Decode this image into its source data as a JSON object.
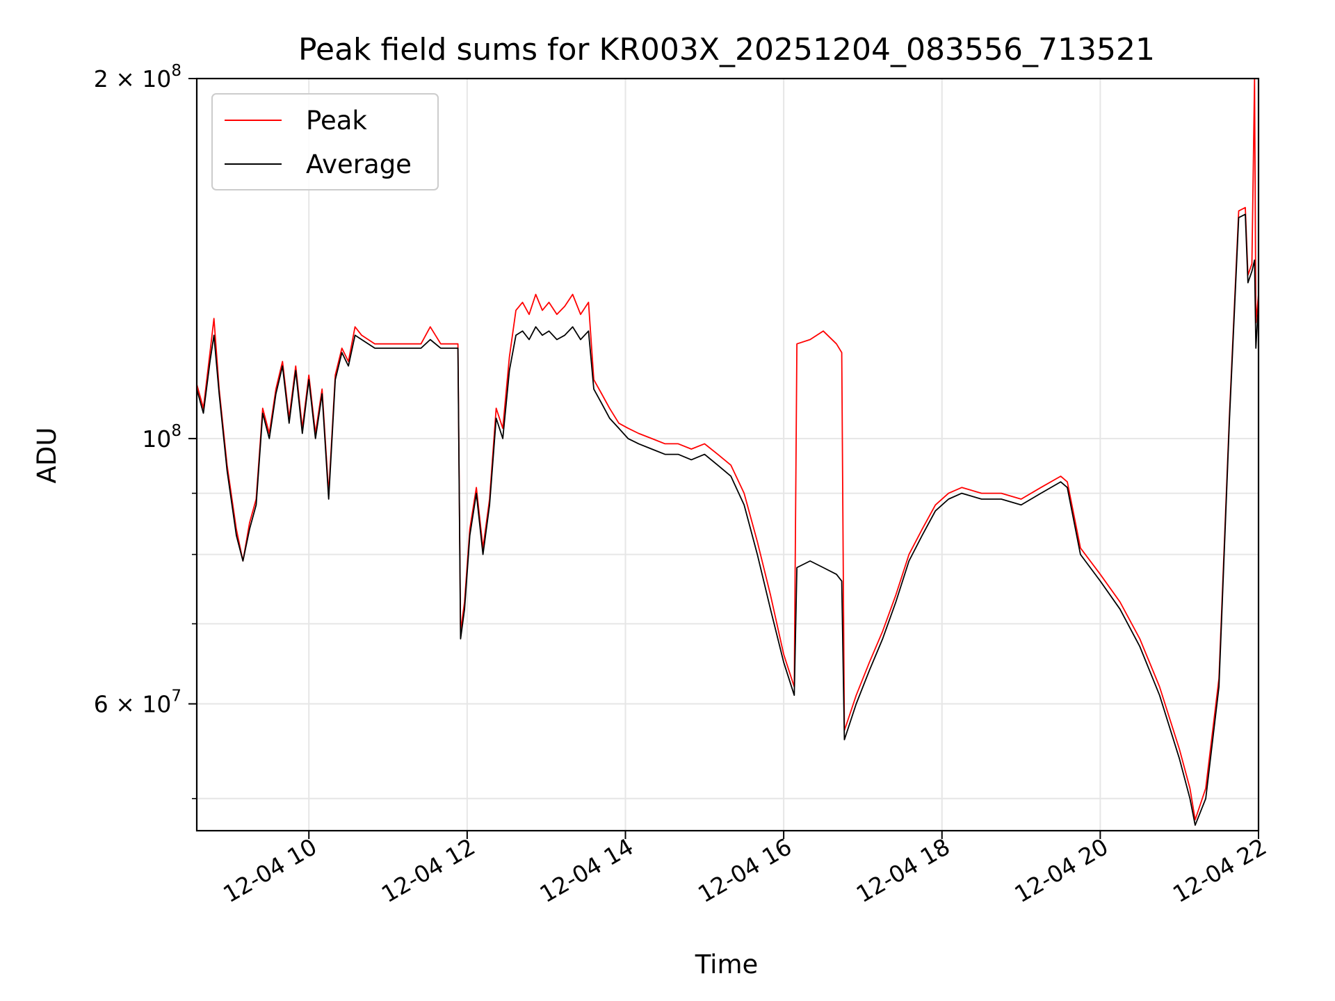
{
  "chart_data": {
    "type": "line",
    "title": "Peak field sums for KR003X_20251204_083556_713521",
    "xlabel": "Time",
    "ylabel": "ADU",
    "xlim": [
      "2025-12-04 08:35",
      "2025-12-04 22:00"
    ],
    "ylim": [
      47000000,
      200000000
    ],
    "yscale": "log",
    "grid": true,
    "legend": "upper-left",
    "x_ticks": [
      {
        "x": "2025-12-04 10:00",
        "label": "12-04 10"
      },
      {
        "x": "2025-12-04 12:00",
        "label": "12-04 12"
      },
      {
        "x": "2025-12-04 14:00",
        "label": "12-04 14"
      },
      {
        "x": "2025-12-04 16:00",
        "label": "12-04 16"
      },
      {
        "x": "2025-12-04 18:00",
        "label": "12-04 18"
      },
      {
        "x": "2025-12-04 20:00",
        "label": "12-04 20"
      },
      {
        "x": "2025-12-04 22:00",
        "label": "12-04 22"
      }
    ],
    "y_ticks": [
      {
        "value": 60000000,
        "base": "6",
        "exp": "7"
      },
      {
        "value": 100000000,
        "base": "",
        "exp": "8"
      },
      {
        "value": 200000000,
        "base": "2",
        "exp": "8"
      }
    ],
    "y_minor_grid": [
      50000000,
      70000000,
      80000000,
      90000000
    ],
    "series": [
      {
        "name": "Peak",
        "color": "#ff0000",
        "points": [
          [
            "2025-12-04 08:35",
            111000000
          ],
          [
            "2025-12-04 08:40",
            106000000
          ],
          [
            "2025-12-04 08:45",
            118000000
          ],
          [
            "2025-12-04 08:48",
            126000000
          ],
          [
            "2025-12-04 08:52",
            110000000
          ],
          [
            "2025-12-04 08:58",
            95000000
          ],
          [
            "2025-12-04 09:05",
            84000000
          ],
          [
            "2025-12-04 09:10",
            79000000
          ],
          [
            "2025-12-04 09:15",
            85000000
          ],
          [
            "2025-12-04 09:20",
            89000000
          ],
          [
            "2025-12-04 09:25",
            106000000
          ],
          [
            "2025-12-04 09:30",
            101000000
          ],
          [
            "2025-12-04 09:35",
            110000000
          ],
          [
            "2025-12-04 09:40",
            116000000
          ],
          [
            "2025-12-04 09:45",
            104000000
          ],
          [
            "2025-12-04 09:50",
            115000000
          ],
          [
            "2025-12-04 09:55",
            102000000
          ],
          [
            "2025-12-04 10:00",
            113000000
          ],
          [
            "2025-12-04 10:05",
            101000000
          ],
          [
            "2025-12-04 10:10",
            110000000
          ],
          [
            "2025-12-04 10:15",
            90000000
          ],
          [
            "2025-12-04 10:20",
            113000000
          ],
          [
            "2025-12-04 10:25",
            119000000
          ],
          [
            "2025-12-04 10:30",
            116000000
          ],
          [
            "2025-12-04 10:35",
            124000000
          ],
          [
            "2025-12-04 10:40",
            122000000
          ],
          [
            "2025-12-04 10:50",
            120000000
          ],
          [
            "2025-12-04 11:00",
            120000000
          ],
          [
            "2025-12-04 11:15",
            120000000
          ],
          [
            "2025-12-04 11:25",
            120000000
          ],
          [
            "2025-12-04 11:32",
            124000000
          ],
          [
            "2025-12-04 11:40",
            120000000
          ],
          [
            "2025-12-04 11:50",
            120000000
          ],
          [
            "2025-12-04 11:53",
            120000000
          ],
          [
            "2025-12-04 11:55",
            69000000
          ],
          [
            "2025-12-04 11:58",
            73000000
          ],
          [
            "2025-12-04 12:02",
            84000000
          ],
          [
            "2025-12-04 12:07",
            91000000
          ],
          [
            "2025-12-04 12:12",
            81000000
          ],
          [
            "2025-12-04 12:17",
            89000000
          ],
          [
            "2025-12-04 12:22",
            106000000
          ],
          [
            "2025-12-04 12:27",
            102000000
          ],
          [
            "2025-12-04 12:32",
            117000000
          ],
          [
            "2025-12-04 12:37",
            128000000
          ],
          [
            "2025-12-04 12:42",
            130000000
          ],
          [
            "2025-12-04 12:47",
            127000000
          ],
          [
            "2025-12-04 12:52",
            132000000
          ],
          [
            "2025-12-04 12:57",
            128000000
          ],
          [
            "2025-12-04 13:02",
            130000000
          ],
          [
            "2025-12-04 13:08",
            127000000
          ],
          [
            "2025-12-04 13:14",
            129000000
          ],
          [
            "2025-12-04 13:20",
            132000000
          ],
          [
            "2025-12-04 13:26",
            127000000
          ],
          [
            "2025-12-04 13:32",
            130000000
          ],
          [
            "2025-12-04 13:36",
            112000000
          ],
          [
            "2025-12-04 13:42",
            109000000
          ],
          [
            "2025-12-04 13:48",
            106000000
          ],
          [
            "2025-12-04 13:55",
            103000000
          ],
          [
            "2025-12-04 14:02",
            102000000
          ],
          [
            "2025-12-04 14:10",
            101000000
          ],
          [
            "2025-12-04 14:20",
            100000000
          ],
          [
            "2025-12-04 14:30",
            99000000
          ],
          [
            "2025-12-04 14:40",
            99000000
          ],
          [
            "2025-12-04 14:50",
            98000000
          ],
          [
            "2025-12-04 15:00",
            99000000
          ],
          [
            "2025-12-04 15:10",
            97000000
          ],
          [
            "2025-12-04 15:20",
            95000000
          ],
          [
            "2025-12-04 15:30",
            90000000
          ],
          [
            "2025-12-04 15:40",
            82000000
          ],
          [
            "2025-12-04 15:50",
            74000000
          ],
          [
            "2025-12-04 16:00",
            66000000
          ],
          [
            "2025-12-04 16:08",
            62000000
          ],
          [
            "2025-12-04 16:10",
            120000000
          ],
          [
            "2025-12-04 16:20",
            121000000
          ],
          [
            "2025-12-04 16:30",
            123000000
          ],
          [
            "2025-12-04 16:40",
            120000000
          ],
          [
            "2025-12-04 16:44",
            118000000
          ],
          [
            "2025-12-04 16:46",
            57000000
          ],
          [
            "2025-12-04 16:55",
            61000000
          ],
          [
            "2025-12-04 17:05",
            65000000
          ],
          [
            "2025-12-04 17:15",
            69000000
          ],
          [
            "2025-12-04 17:25",
            74000000
          ],
          [
            "2025-12-04 17:35",
            80000000
          ],
          [
            "2025-12-04 17:45",
            84000000
          ],
          [
            "2025-12-04 17:55",
            88000000
          ],
          [
            "2025-12-04 18:05",
            90000000
          ],
          [
            "2025-12-04 18:15",
            91000000
          ],
          [
            "2025-12-04 18:30",
            90000000
          ],
          [
            "2025-12-04 18:45",
            90000000
          ],
          [
            "2025-12-04 19:00",
            89000000
          ],
          [
            "2025-12-04 19:15",
            91000000
          ],
          [
            "2025-12-04 19:30",
            93000000
          ],
          [
            "2025-12-04 19:35",
            92000000
          ],
          [
            "2025-12-04 19:45",
            81000000
          ],
          [
            "2025-12-04 20:00",
            77000000
          ],
          [
            "2025-12-04 20:15",
            73000000
          ],
          [
            "2025-12-04 20:30",
            68000000
          ],
          [
            "2025-12-04 20:45",
            62000000
          ],
          [
            "2025-12-04 21:00",
            55000000
          ],
          [
            "2025-12-04 21:08",
            51000000
          ],
          [
            "2025-12-04 21:12",
            48000000
          ],
          [
            "2025-12-04 21:20",
            51000000
          ],
          [
            "2025-12-04 21:30",
            63000000
          ],
          [
            "2025-12-04 21:38",
            105000000
          ],
          [
            "2025-12-04 21:45",
            155000000
          ],
          [
            "2025-12-04 21:50",
            156000000
          ],
          [
            "2025-12-04 21:52",
            137000000
          ],
          [
            "2025-12-04 21:55",
            140000000
          ],
          [
            "2025-12-04 21:57",
            200000000
          ],
          [
            "2025-12-04 21:58",
            125000000
          ],
          [
            "2025-12-04 22:00",
            132000000
          ]
        ]
      },
      {
        "name": "Average",
        "color": "#000000",
        "points": [
          [
            "2025-12-04 08:35",
            110000000
          ],
          [
            "2025-12-04 08:40",
            105000000
          ],
          [
            "2025-12-04 08:45",
            116000000
          ],
          [
            "2025-12-04 08:48",
            122000000
          ],
          [
            "2025-12-04 08:52",
            109000000
          ],
          [
            "2025-12-04 08:58",
            94000000
          ],
          [
            "2025-12-04 09:05",
            83000000
          ],
          [
            "2025-12-04 09:10",
            79000000
          ],
          [
            "2025-12-04 09:15",
            84000000
          ],
          [
            "2025-12-04 09:20",
            88000000
          ],
          [
            "2025-12-04 09:25",
            105000000
          ],
          [
            "2025-12-04 09:30",
            100000000
          ],
          [
            "2025-12-04 09:35",
            109000000
          ],
          [
            "2025-12-04 09:40",
            115000000
          ],
          [
            "2025-12-04 09:45",
            103000000
          ],
          [
            "2025-12-04 09:50",
            114000000
          ],
          [
            "2025-12-04 09:55",
            101000000
          ],
          [
            "2025-12-04 10:00",
            112000000
          ],
          [
            "2025-12-04 10:05",
            100000000
          ],
          [
            "2025-12-04 10:10",
            109000000
          ],
          [
            "2025-12-04 10:15",
            89000000
          ],
          [
            "2025-12-04 10:20",
            112000000
          ],
          [
            "2025-12-04 10:25",
            118000000
          ],
          [
            "2025-12-04 10:30",
            115000000
          ],
          [
            "2025-12-04 10:35",
            122000000
          ],
          [
            "2025-12-04 10:40",
            121000000
          ],
          [
            "2025-12-04 10:50",
            119000000
          ],
          [
            "2025-12-04 11:00",
            119000000
          ],
          [
            "2025-12-04 11:15",
            119000000
          ],
          [
            "2025-12-04 11:25",
            119000000
          ],
          [
            "2025-12-04 11:32",
            121000000
          ],
          [
            "2025-12-04 11:40",
            119000000
          ],
          [
            "2025-12-04 11:50",
            119000000
          ],
          [
            "2025-12-04 11:53",
            119000000
          ],
          [
            "2025-12-04 11:55",
            68000000
          ],
          [
            "2025-12-04 11:58",
            72000000
          ],
          [
            "2025-12-04 12:02",
            83000000
          ],
          [
            "2025-12-04 12:07",
            90000000
          ],
          [
            "2025-12-04 12:12",
            80000000
          ],
          [
            "2025-12-04 12:17",
            88000000
          ],
          [
            "2025-12-04 12:22",
            104000000
          ],
          [
            "2025-12-04 12:27",
            100000000
          ],
          [
            "2025-12-04 12:32",
            114000000
          ],
          [
            "2025-12-04 12:37",
            122000000
          ],
          [
            "2025-12-04 12:42",
            123000000
          ],
          [
            "2025-12-04 12:47",
            121000000
          ],
          [
            "2025-12-04 12:52",
            124000000
          ],
          [
            "2025-12-04 12:57",
            122000000
          ],
          [
            "2025-12-04 13:02",
            123000000
          ],
          [
            "2025-12-04 13:08",
            121000000
          ],
          [
            "2025-12-04 13:14",
            122000000
          ],
          [
            "2025-12-04 13:20",
            124000000
          ],
          [
            "2025-12-04 13:26",
            121000000
          ],
          [
            "2025-12-04 13:32",
            123000000
          ],
          [
            "2025-12-04 13:36",
            110000000
          ],
          [
            "2025-12-04 13:42",
            107000000
          ],
          [
            "2025-12-04 13:48",
            104000000
          ],
          [
            "2025-12-04 13:55",
            102000000
          ],
          [
            "2025-12-04 14:02",
            100000000
          ],
          [
            "2025-12-04 14:10",
            99000000
          ],
          [
            "2025-12-04 14:20",
            98000000
          ],
          [
            "2025-12-04 14:30",
            97000000
          ],
          [
            "2025-12-04 14:40",
            97000000
          ],
          [
            "2025-12-04 14:50",
            96000000
          ],
          [
            "2025-12-04 15:00",
            97000000
          ],
          [
            "2025-12-04 15:10",
            95000000
          ],
          [
            "2025-12-04 15:20",
            93000000
          ],
          [
            "2025-12-04 15:30",
            88000000
          ],
          [
            "2025-12-04 15:40",
            80000000
          ],
          [
            "2025-12-04 15:50",
            72000000
          ],
          [
            "2025-12-04 16:00",
            65000000
          ],
          [
            "2025-12-04 16:08",
            61000000
          ],
          [
            "2025-12-04 16:10",
            78000000
          ],
          [
            "2025-12-04 16:20",
            79000000
          ],
          [
            "2025-12-04 16:30",
            78000000
          ],
          [
            "2025-12-04 16:40",
            77000000
          ],
          [
            "2025-12-04 16:44",
            76000000
          ],
          [
            "2025-12-04 16:46",
            56000000
          ],
          [
            "2025-12-04 16:55",
            60000000
          ],
          [
            "2025-12-04 17:05",
            64000000
          ],
          [
            "2025-12-04 17:15",
            68000000
          ],
          [
            "2025-12-04 17:25",
            73000000
          ],
          [
            "2025-12-04 17:35",
            79000000
          ],
          [
            "2025-12-04 17:45",
            83000000
          ],
          [
            "2025-12-04 17:55",
            87000000
          ],
          [
            "2025-12-04 18:05",
            89000000
          ],
          [
            "2025-12-04 18:15",
            90000000
          ],
          [
            "2025-12-04 18:30",
            89000000
          ],
          [
            "2025-12-04 18:45",
            89000000
          ],
          [
            "2025-12-04 19:00",
            88000000
          ],
          [
            "2025-12-04 19:15",
            90000000
          ],
          [
            "2025-12-04 19:30",
            92000000
          ],
          [
            "2025-12-04 19:35",
            91000000
          ],
          [
            "2025-12-04 19:45",
            80000000
          ],
          [
            "2025-12-04 20:00",
            76000000
          ],
          [
            "2025-12-04 20:15",
            72000000
          ],
          [
            "2025-12-04 20:30",
            67000000
          ],
          [
            "2025-12-04 20:45",
            61000000
          ],
          [
            "2025-12-04 21:00",
            54000000
          ],
          [
            "2025-12-04 21:08",
            50000000
          ],
          [
            "2025-12-04 21:12",
            47500000
          ],
          [
            "2025-12-04 21:20",
            50000000
          ],
          [
            "2025-12-04 21:30",
            62000000
          ],
          [
            "2025-12-04 21:38",
            104000000
          ],
          [
            "2025-12-04 21:45",
            153000000
          ],
          [
            "2025-12-04 21:50",
            154000000
          ],
          [
            "2025-12-04 21:52",
            135000000
          ],
          [
            "2025-12-04 21:55",
            138000000
          ],
          [
            "2025-12-04 21:57",
            141000000
          ],
          [
            "2025-12-04 21:58",
            119000000
          ],
          [
            "2025-12-04 22:00",
            130000000
          ]
        ]
      }
    ]
  }
}
